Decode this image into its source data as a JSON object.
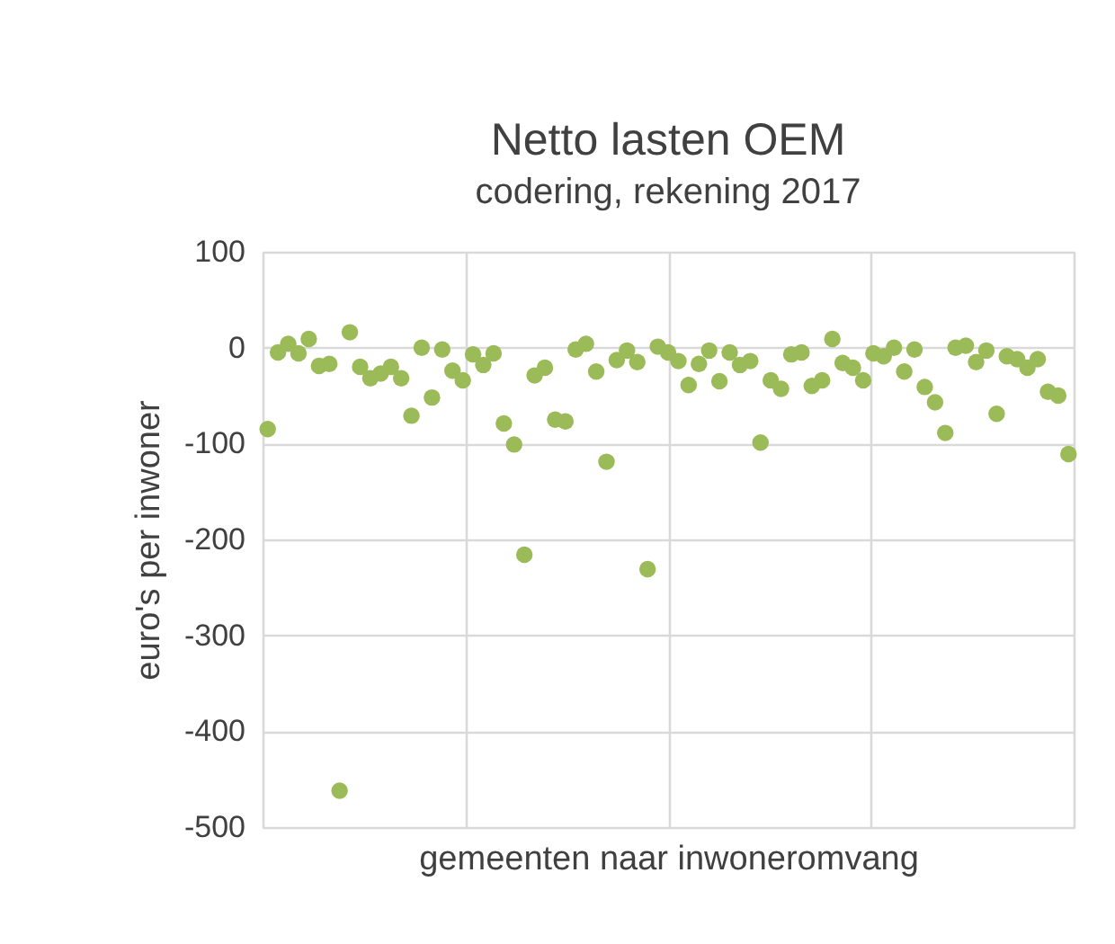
{
  "chart_data": {
    "type": "scatter",
    "title": "Netto lasten OEM",
    "subtitle": "codering, rekening 2017",
    "xlabel": "gemeenten naar inwoneromvang",
    "ylabel": "euro's per inwoner",
    "categories": [
      null,
      null,
      null,
      null,
      null,
      null,
      null,
      null,
      null,
      null,
      null,
      null,
      null,
      null,
      null,
      null,
      null,
      null,
      null,
      null,
      null,
      null,
      null,
      null,
      null,
      null,
      null,
      null,
      null,
      null,
      null,
      null,
      null,
      null,
      null,
      null,
      null,
      null,
      null,
      null,
      null,
      null,
      null,
      null,
      null,
      null,
      null,
      null,
      null,
      null,
      null,
      null,
      null,
      null,
      null,
      null,
      null,
      null,
      null,
      null,
      null,
      null,
      null,
      null,
      null,
      null,
      null,
      null,
      null,
      null,
      null,
      null,
      null,
      null,
      null,
      null,
      null,
      null,
      null
    ],
    "ylim": [
      -500,
      100
    ],
    "yticks": [
      -500,
      -400,
      -300,
      -200,
      -100,
      0,
      100
    ],
    "grid": true,
    "tick_labels": "y",
    "marker": "circle",
    "series": [
      {
        "color": "#9bbb59",
        "values": [
          -85,
          -5,
          4,
          -6,
          9,
          -19,
          -17,
          -462,
          16,
          -20,
          -32,
          -27,
          -20,
          -32,
          -71,
          0,
          -52,
          -2,
          -24,
          -34,
          -7,
          -18,
          -6,
          -79,
          -101,
          -216,
          -29,
          -21,
          -75,
          -77,
          -2,
          4,
          -25,
          -119,
          -13,
          -3,
          -15,
          -231,
          1,
          -5,
          -14,
          -39,
          -17,
          -3,
          -35,
          -5,
          -18,
          -14,
          -99,
          -34,
          -43,
          -7,
          -5,
          -40,
          -34,
          9,
          -16,
          -21,
          -34,
          -6,
          -9,
          0,
          -25,
          -2,
          -41,
          -57,
          -89,
          0,
          2,
          -15,
          -3,
          -69,
          -9,
          -12,
          -21,
          -12,
          -46,
          -50,
          -111
        ]
      }
    ]
  }
}
